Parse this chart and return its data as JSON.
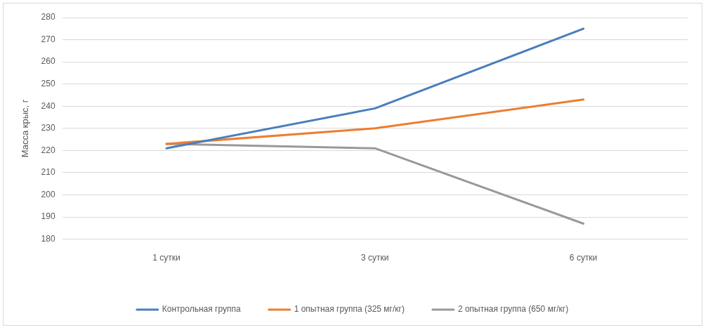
{
  "chart_data": {
    "type": "line",
    "ylabel": "Масса крыс, г",
    "categories": [
      "1 сутки",
      "3 сутки",
      "6 сутки"
    ],
    "series": [
      {
        "name": "Контрольная группа",
        "color": "#4a7ebb",
        "values": [
          221,
          239,
          275
        ]
      },
      {
        "name": "1 опытная группа (325 мг/кг)",
        "color": "#ed7d31",
        "values": [
          223,
          230,
          243
        ]
      },
      {
        "name": "2 опытная группа (650 мг/кг)",
        "color": "#999999",
        "values": [
          223,
          221,
          187
        ]
      }
    ],
    "ylim": [
      180,
      280
    ],
    "yticks": [
      180,
      190,
      200,
      210,
      220,
      230,
      240,
      250,
      260,
      270,
      280
    ],
    "grid": "y",
    "legend": "bottom",
    "marker": "none",
    "line_style": "solid"
  }
}
